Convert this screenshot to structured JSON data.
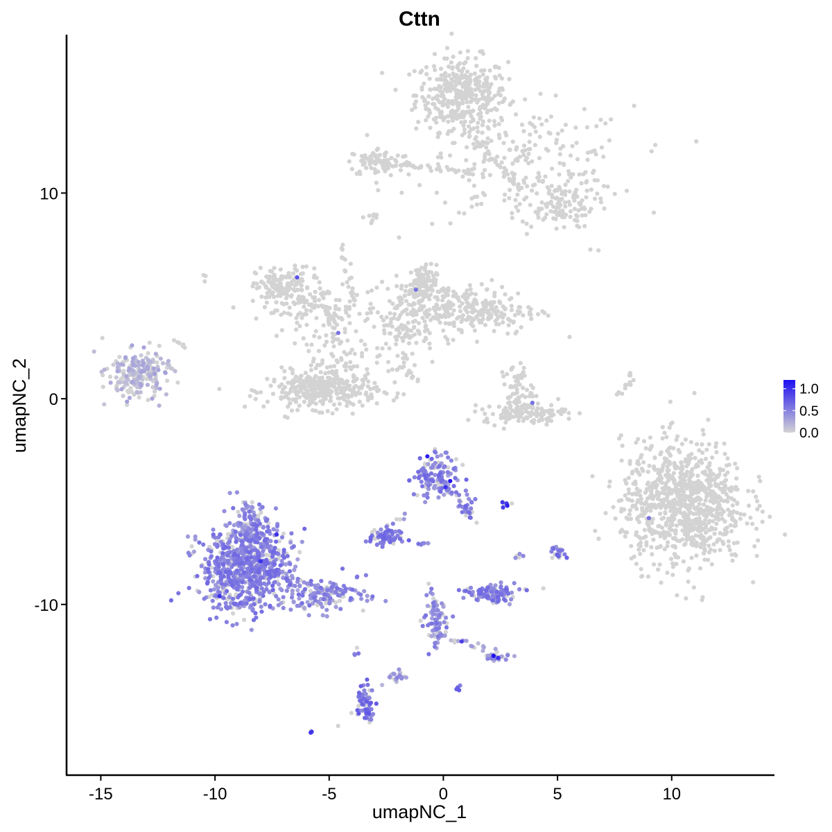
{
  "chart_data": {
    "type": "scatter",
    "title": "Cttn",
    "xlabel": "umapNC_1",
    "ylabel": "umapNC_2",
    "xlim": [
      -16.5,
      14.5
    ],
    "ylim": [
      -18.3,
      17.7
    ],
    "x_ticks": [
      -15,
      -10,
      -5,
      0,
      5,
      10
    ],
    "x_tick_labels": [
      "-15",
      "-10",
      "-5",
      "0",
      "5",
      "10"
    ],
    "y_ticks": [
      -10,
      0,
      10
    ],
    "y_tick_labels": [
      "-10",
      "0",
      "10"
    ],
    "grid": false,
    "legend": {
      "position": "right",
      "type": "colorbar",
      "min": 0.0,
      "max": 1.2,
      "ticks": [
        1.0,
        0.5,
        0.0
      ],
      "tick_labels": [
        "1.0",
        "0.5",
        "0.0"
      ],
      "low_color": "#d3d3d3",
      "high_color": "#1e10f0"
    },
    "clusters": [
      {
        "x": 0.8,
        "y": 14.8,
        "sx": 1.0,
        "sy": 0.9,
        "n": 380,
        "expr": 0.0
      },
      {
        "x": 3.5,
        "y": 11.4,
        "sx": 2.4,
        "sy": 1.4,
        "n": 220,
        "expr": 0.0
      },
      {
        "x": -2.8,
        "y": 11.5,
        "sx": 0.7,
        "sy": 0.35,
        "n": 80,
        "expr": 0.0
      },
      {
        "x": 5.0,
        "y": 9.5,
        "sx": 0.8,
        "sy": 0.6,
        "n": 110,
        "expr": 0.0
      },
      {
        "x": -7.0,
        "y": 5.4,
        "sx": 0.6,
        "sy": 0.5,
        "n": 150,
        "expr": 0.0
      },
      {
        "x": -5.3,
        "y": 4.2,
        "sx": 1.3,
        "sy": 0.6,
        "n": 110,
        "expr": 0.0
      },
      {
        "x": -5.3,
        "y": 0.4,
        "sx": 1.2,
        "sy": 0.45,
        "n": 330,
        "expr": 0.0
      },
      {
        "x": -4.7,
        "y": 1.8,
        "sx": 0.6,
        "sy": 0.7,
        "n": 70,
        "expr": 0.0
      },
      {
        "x": -1.0,
        "y": 5.5,
        "sx": 0.35,
        "sy": 0.5,
        "n": 110,
        "expr": 0.0
      },
      {
        "x": 1.0,
        "y": 4.3,
        "sx": 1.6,
        "sy": 0.6,
        "n": 280,
        "expr": 0.0
      },
      {
        "x": -1.7,
        "y": 3.5,
        "sx": 0.7,
        "sy": 1.0,
        "n": 90,
        "expr": 0.0
      },
      {
        "x": 3.6,
        "y": -0.7,
        "sx": 0.9,
        "sy": 0.25,
        "n": 120,
        "expr": 0.0
      },
      {
        "x": 3.2,
        "y": 0.5,
        "sx": 0.35,
        "sy": 0.6,
        "n": 55,
        "expr": 0.0
      },
      {
        "x": 10.5,
        "y": -5.1,
        "sx": 1.35,
        "sy": 1.5,
        "n": 900,
        "expr": 0.0
      },
      {
        "x": -13.4,
        "y": 1.2,
        "sx": 0.65,
        "sy": 0.55,
        "n": 220,
        "expr": 0.1
      },
      {
        "x": -8.6,
        "y": -8.3,
        "sx": 1.0,
        "sy": 1.0,
        "n": 720,
        "expr": 0.45
      },
      {
        "x": -8.4,
        "y": -6.3,
        "sx": 0.45,
        "sy": 0.8,
        "n": 130,
        "expr": 0.4
      },
      {
        "x": -5.2,
        "y": -9.6,
        "sx": 0.9,
        "sy": 0.35,
        "n": 130,
        "expr": 0.4
      },
      {
        "x": -0.4,
        "y": -3.7,
        "sx": 0.5,
        "sy": 0.55,
        "n": 130,
        "expr": 0.45
      },
      {
        "x": 1.1,
        "y": -5.3,
        "sx": 0.15,
        "sy": 0.35,
        "n": 20,
        "expr": 0.5
      },
      {
        "x": -2.5,
        "y": -6.8,
        "sx": 0.45,
        "sy": 0.2,
        "n": 70,
        "expr": 0.5
      },
      {
        "x": 2.3,
        "y": -9.5,
        "sx": 0.55,
        "sy": 0.22,
        "n": 110,
        "expr": 0.45
      },
      {
        "x": -0.3,
        "y": -11.0,
        "sx": 0.3,
        "sy": 0.6,
        "n": 55,
        "expr": 0.4
      },
      {
        "x": -3.4,
        "y": -14.8,
        "sx": 0.2,
        "sy": 0.5,
        "n": 70,
        "expr": 0.55
      },
      {
        "x": 5.0,
        "y": -7.5,
        "sx": 0.15,
        "sy": 0.2,
        "n": 25,
        "expr": 0.5
      },
      {
        "x": 2.3,
        "y": -12.5,
        "sx": 0.3,
        "sy": 0.15,
        "n": 25,
        "expr": 0.35
      },
      {
        "x": -2.0,
        "y": -13.5,
        "sx": 0.3,
        "sy": 0.15,
        "n": 20,
        "expr": 0.3
      }
    ],
    "strands": [
      {
        "x1": 1.0,
        "y1": 13.0,
        "x2": 3.5,
        "y2": 10.2,
        "n": 40,
        "expr": 0.0
      },
      {
        "x1": -3.5,
        "y1": 11.6,
        "x2": 1.5,
        "y2": 11.0,
        "n": 45,
        "expr": 0.0
      },
      {
        "x1": -10.5,
        "y1": 6.1,
        "x2": -10.4,
        "y2": 5.9,
        "n": 3,
        "expr": 0.0
      },
      {
        "x1": -4.5,
        "y1": 7.5,
        "x2": -3.8,
        "y2": 4.5,
        "n": 22,
        "expr": 0.0
      },
      {
        "x1": -3.5,
        "y1": 8.7,
        "x2": -2.8,
        "y2": 8.9,
        "n": 8,
        "expr": 0.0
      },
      {
        "x1": -5.6,
        "y1": 6.2,
        "x2": -4.6,
        "y2": 2.8,
        "n": 18,
        "expr": 0.0
      },
      {
        "x1": -2.0,
        "y1": 1.6,
        "x2": -1.2,
        "y2": 0.9,
        "n": 14,
        "expr": 0.0
      },
      {
        "x1": -3.0,
        "y1": 2.3,
        "x2": -2.6,
        "y2": 1.7,
        "n": 5,
        "expr": 0.0
      },
      {
        "x1": 7.8,
        "y1": 0.2,
        "x2": 8.2,
        "y2": 1.2,
        "n": 12,
        "expr": 0.0
      },
      {
        "x1": 6.5,
        "y1": 7.3,
        "x2": 6.7,
        "y2": 7.1,
        "n": 2,
        "expr": 0.0
      },
      {
        "x1": -11.8,
        "y1": 2.8,
        "x2": -11.2,
        "y2": 2.6,
        "n": 6,
        "expr": 0.0
      },
      {
        "x1": -7.5,
        "y1": -8.5,
        "x2": -4.5,
        "y2": -9.5,
        "n": 40,
        "expr": 0.35
      },
      {
        "x1": 0.0,
        "y1": -4.0,
        "x2": 1.1,
        "y2": -5.6,
        "n": 22,
        "expr": 0.4
      },
      {
        "x1": -0.6,
        "y1": -9.2,
        "x2": -0.2,
        "y2": -11.5,
        "n": 25,
        "expr": 0.4
      },
      {
        "x1": -0.2,
        "y1": -11.5,
        "x2": 2.3,
        "y2": -12.3,
        "n": 18,
        "expr": 0.2
      },
      {
        "x1": -3.9,
        "y1": -12.2,
        "x2": -3.9,
        "y2": -12.6,
        "n": 4,
        "expr": 0.55
      },
      {
        "x1": -2.6,
        "y1": -6.4,
        "x2": -1.7,
        "y2": -5.6,
        "n": 8,
        "expr": 0.4
      },
      {
        "x1": 2.5,
        "y1": -5.2,
        "x2": 2.9,
        "y2": -5.1,
        "n": 6,
        "expr": 0.8
      },
      {
        "x1": -1.0,
        "y1": -7.0,
        "x2": -0.7,
        "y2": -7.1,
        "n": 6,
        "expr": 0.5
      },
      {
        "x1": 0.5,
        "y1": -14.1,
        "x2": 0.65,
        "y2": -14.2,
        "n": 4,
        "expr": 0.6
      },
      {
        "x1": -6.0,
        "y1": -16.3,
        "x2": -5.8,
        "y2": -16.2,
        "n": 4,
        "expr": 0.8
      },
      {
        "x1": 3.2,
        "y1": -7.7,
        "x2": 3.5,
        "y2": -7.6,
        "n": 5,
        "expr": 0.4
      },
      {
        "x1": -4.6,
        "y1": -16.0,
        "x2": -4.6,
        "y2": -16.0,
        "n": 1,
        "expr": 0.0
      }
    ],
    "highlights": [
      {
        "x": -6.4,
        "y": 5.9,
        "v": 0.8
      },
      {
        "x": -1.2,
        "y": 5.3,
        "v": 0.6
      },
      {
        "x": -4.6,
        "y": 3.2,
        "v": 0.6
      },
      {
        "x": 3.9,
        "y": -0.2,
        "v": 0.6
      },
      {
        "x": 9.0,
        "y": -5.8,
        "v": 0.6
      },
      {
        "x": 0.3,
        "y": -4.0,
        "v": 1.2
      },
      {
        "x": -0.7,
        "y": -2.8,
        "v": 1.1
      },
      {
        "x": 0.1,
        "y": -4.3,
        "v": 1.0
      },
      {
        "x": 2.8,
        "y": -5.2,
        "v": 1.1
      },
      {
        "x": -7.3,
        "y": -6.6,
        "v": 1.0
      },
      {
        "x": -8.0,
        "y": -7.9,
        "v": 1.0
      },
      {
        "x": 2.2,
        "y": -12.5,
        "v": 1.2
      },
      {
        "x": 2.4,
        "y": -12.6,
        "v": 1.0
      },
      {
        "x": -9.8,
        "y": -9.6,
        "v": 1.0
      },
      {
        "x": 0.8,
        "y": -11.8,
        "v": 0.9
      }
    ]
  }
}
